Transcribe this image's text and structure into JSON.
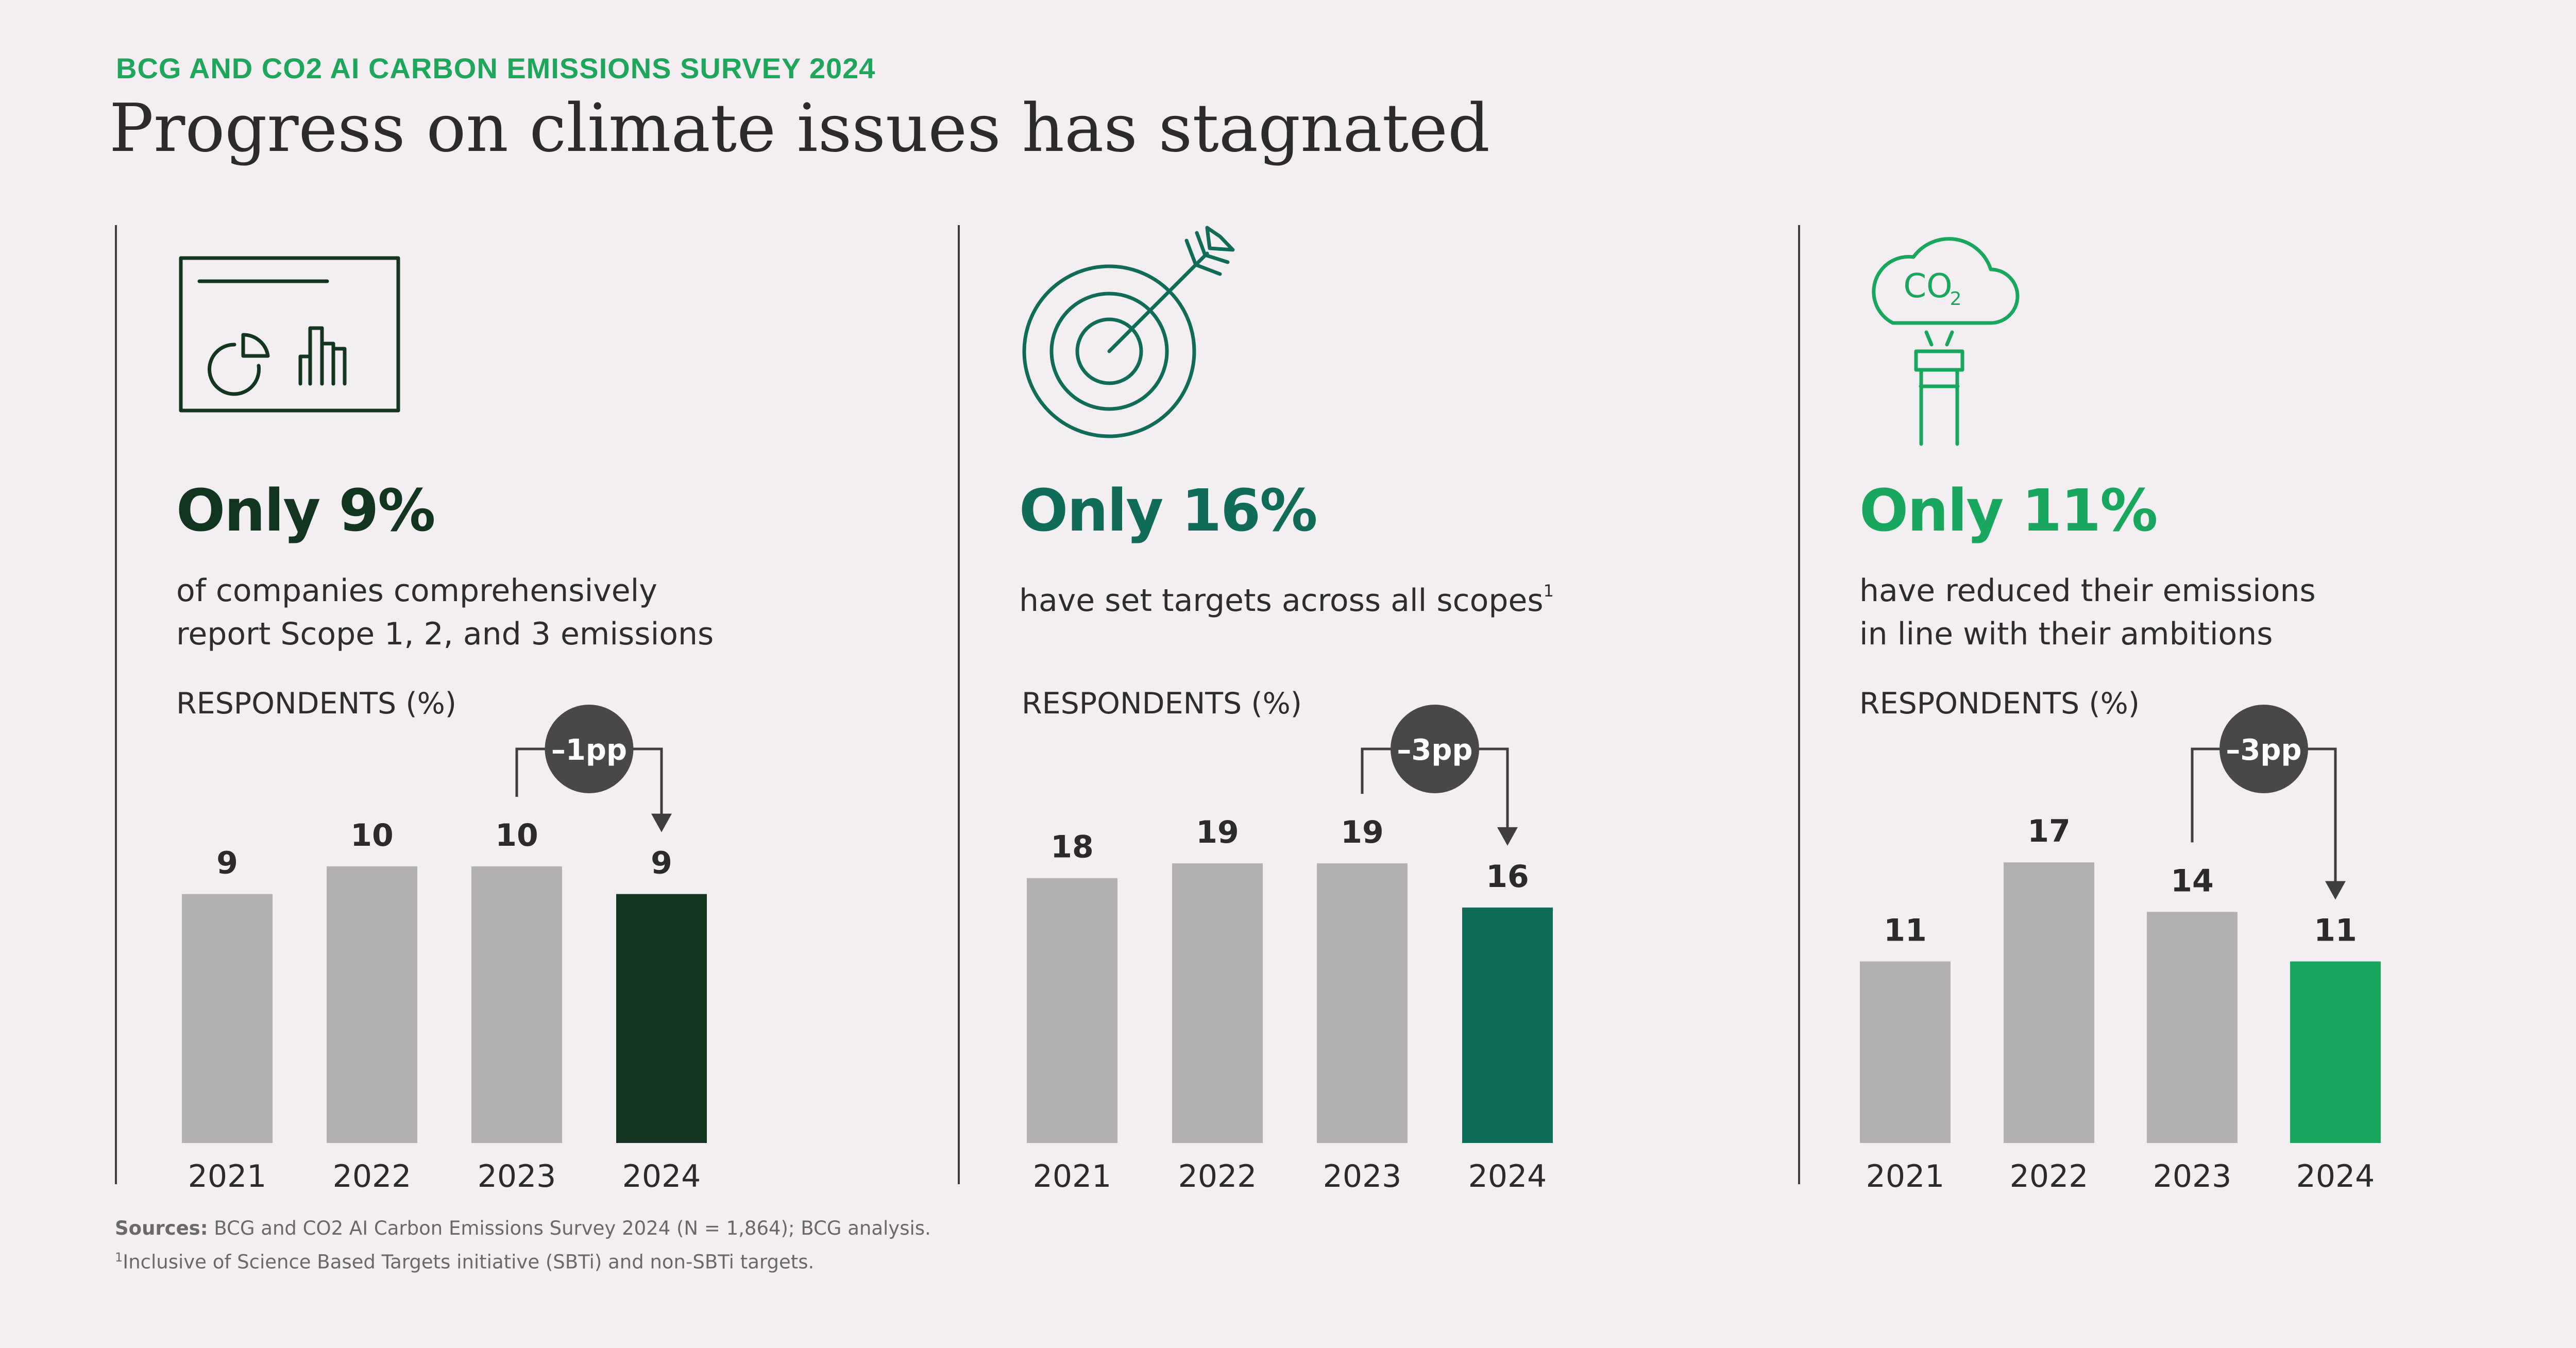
{
  "eyebrow": "BCG AND CO2 AI CARBON EMISSIONS SURVEY 2024",
  "title": "Progress on climate issues has stagnated",
  "colors": {
    "grey_bar": "#b1afb1",
    "panel1": "#123520",
    "panel2": "#106c58",
    "panel3": "#18a75d",
    "badge": "#4a474b",
    "eyebrow": "#1ea75a"
  },
  "panels": [
    {
      "icon": "dashboard-chart-icon",
      "headline": "Only 9%",
      "subtext_lines": [
        "of companies comprehensively",
        "report Scope 1, 2, and 3 emissions"
      ],
      "subtext_sup": "",
      "respondents_label": "RESPONDENTS (%)",
      "badge": "–1pp"
    },
    {
      "icon": "target-arrow-icon",
      "headline": "Only 16%",
      "subtext_lines": [
        "have set targets across all scopes"
      ],
      "subtext_sup": "1",
      "respondents_label": "RESPONDENTS (%)",
      "badge": "–3pp"
    },
    {
      "icon": "co2-cloud-chimney-icon",
      "icon_text": "CO",
      "icon_sub": "2",
      "headline": "Only 11%",
      "subtext_lines": [
        "have reduced their emissions",
        "in line with their ambitions"
      ],
      "subtext_sup": "",
      "respondents_label": "RESPONDENTS (%)",
      "badge": "–3pp"
    }
  ],
  "chart_data": [
    {
      "type": "bar",
      "title": "Only 9% of companies comprehensively report Scope 1, 2, and 3 emissions",
      "ylabel": "RESPONDENTS (%)",
      "categories": [
        "2021",
        "2022",
        "2023",
        "2024"
      ],
      "values": [
        9,
        10,
        10,
        9
      ],
      "value_labels": [
        "9",
        "10",
        "10",
        "9"
      ],
      "ylim": [
        0,
        10.8
      ],
      "annotation": "–1pp"
    },
    {
      "type": "bar",
      "title": "Only 16% have set targets across all scopes",
      "ylabel": "RESPONDENTS (%)",
      "categories": [
        "2021",
        "2022",
        "2023",
        "2024"
      ],
      "values": [
        18,
        19,
        19,
        16
      ],
      "value_labels": [
        "18",
        "19",
        "19",
        "16"
      ],
      "ylim": [
        0,
        20.3
      ],
      "annotation": "–3pp"
    },
    {
      "type": "bar",
      "title": "Only 11% have reduced their emissions in line with their ambitions",
      "ylabel": "RESPONDENTS (%)",
      "categories": [
        "2021",
        "2022",
        "2023",
        "2024"
      ],
      "values": [
        11,
        17,
        14,
        11
      ],
      "value_labels": [
        "11",
        "17",
        "14",
        "11"
      ],
      "ylim": [
        0,
        18.1
      ],
      "annotation": "–3pp"
    }
  ],
  "footnotes": {
    "sources_label": "Sources:",
    "sources_text": " BCG and CO2 AI Carbon Emissions Survey 2024 (N = 1,864); BCG analysis.",
    "note_marker": "1",
    "note_text": "Inclusive of Science Based Targets initiative (SBTi) and non-SBTi targets."
  }
}
